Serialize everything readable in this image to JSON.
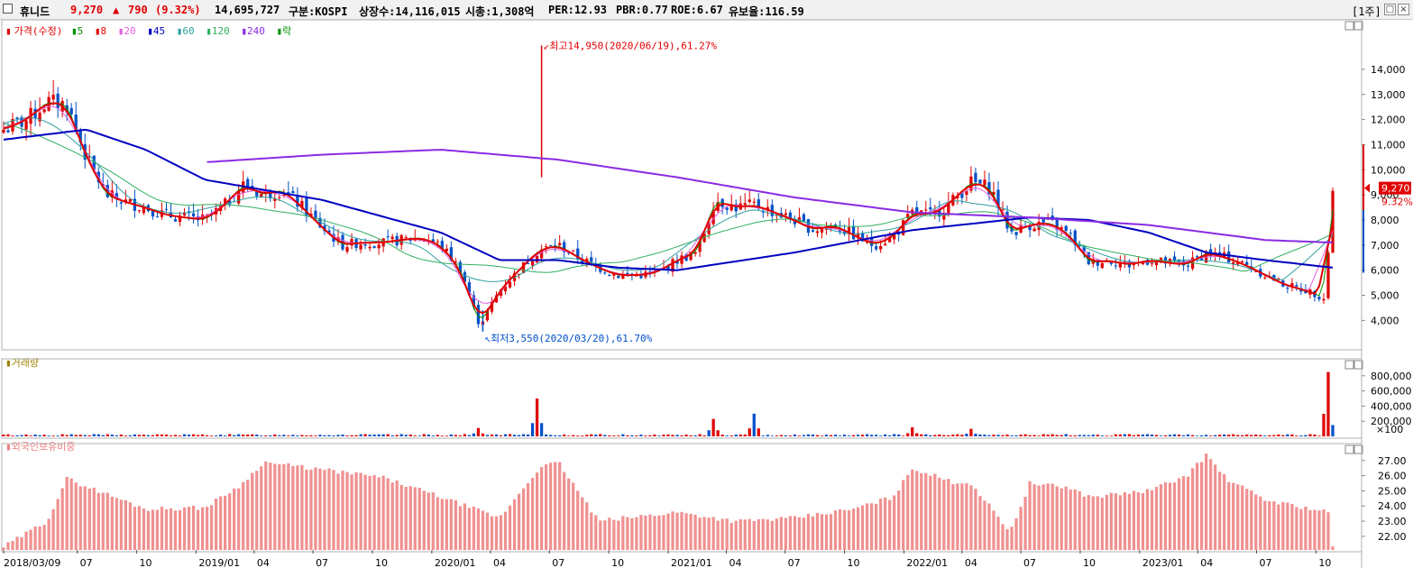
{
  "header": {
    "name": "휴니드",
    "price": "9,270",
    "change_arrow": "▲",
    "change": "790",
    "change_pct": "(9.32%)",
    "volume": "14,695,727",
    "market": "구분:KOSPI",
    "shares": "상장수:14,116,015",
    "mcap": "시총:1,308억",
    "per": "PER:12.93",
    "pbr": "PBR:0.77",
    "roe": "ROE:6.67",
    "reserve": "유보율:116.59",
    "period": "[1주]",
    "colors": {
      "up": "#e00000",
      "down": "#0050c8"
    }
  },
  "legend": {
    "price_title": "가격(수정)",
    "ma": [
      {
        "label": "5",
        "color": "#009000"
      },
      {
        "label": "8",
        "color": "#e00000"
      },
      {
        "label": "20",
        "color": "#e060e0"
      },
      {
        "label": "45",
        "color": "#0000c0"
      },
      {
        "label": "60",
        "color": "#30a0a0"
      },
      {
        "label": "120",
        "color": "#30b060"
      },
      {
        "label": "240",
        "color": "#8a2be2"
      }
    ],
    "extra": "락",
    "volume_title": "거래량",
    "foreign_title": "외국인보유비중"
  },
  "chart_data": [
    {
      "type": "candlestick",
      "title": "가격(수정)",
      "ylim": [
        2900,
        15900
      ],
      "yticks": [
        4000,
        5000,
        6000,
        7000,
        8000,
        9000,
        10000,
        11000,
        12000,
        13000,
        14000
      ],
      "ytick_labels": [
        "4,000",
        "5,000",
        "6,000",
        "7,000",
        "8,000",
        "9,000",
        "10,000",
        "11,000",
        "12,000",
        "13,000",
        "14,000"
      ],
      "current_price_label": "9,270",
      "current_change_label": "9.32%",
      "annotations": [
        {
          "text": "최고14,950(2020/06/19),61.27%",
          "x": "2020/06/19",
          "y": 14950
        },
        {
          "text": "최저3,550(2020/03/20),61.70%",
          "x": "2020/03/20",
          "y": 3550
        }
      ],
      "close_keyframes": [
        [
          "2018/03/09",
          11600
        ],
        [
          "2018/04",
          12000
        ],
        [
          "2018/05",
          12700
        ],
        [
          "2018/06",
          12600
        ],
        [
          "2018/07",
          10500
        ],
        [
          "2018/08",
          9000
        ],
        [
          "2018/09",
          8700
        ],
        [
          "2018/10",
          8500
        ],
        [
          "2018/11",
          8200
        ],
        [
          "2018/12",
          8100
        ],
        [
          "2019/01",
          8000
        ],
        [
          "2019/02",
          8600
        ],
        [
          "2019/03",
          9400
        ],
        [
          "2019/04",
          9000
        ],
        [
          "2019/05",
          9200
        ],
        [
          "2019/06",
          8500
        ],
        [
          "2019/07",
          7700
        ],
        [
          "2019/08",
          7000
        ],
        [
          "2019/09",
          7100
        ],
        [
          "2019/10",
          7100
        ],
        [
          "2019/11",
          7200
        ],
        [
          "2019/12",
          7300
        ],
        [
          "2020/01",
          7000
        ],
        [
          "2020/02",
          6000
        ],
        [
          "2020/03",
          3800
        ],
        [
          "2020/04",
          5200
        ],
        [
          "2020/05",
          6000
        ],
        [
          "2020/06",
          6800
        ],
        [
          "2020/07",
          7000
        ],
        [
          "2020/08",
          6500
        ],
        [
          "2020/09",
          6100
        ],
        [
          "2020/10",
          5800
        ],
        [
          "2020/11",
          5800
        ],
        [
          "2020/12",
          5900
        ],
        [
          "2021/01",
          6400
        ],
        [
          "2021/02",
          6700
        ],
        [
          "2021/03",
          8800
        ],
        [
          "2021/04",
          8500
        ],
        [
          "2021/05",
          8600
        ],
        [
          "2021/06",
          8300
        ],
        [
          "2021/07",
          8000
        ],
        [
          "2021/08",
          7600
        ],
        [
          "2021/09",
          7800
        ],
        [
          "2021/10",
          7400
        ],
        [
          "2021/11",
          7000
        ],
        [
          "2021/12",
          7300
        ],
        [
          "2022/01",
          8300
        ],
        [
          "2022/02",
          8200
        ],
        [
          "2022/03",
          8700
        ],
        [
          "2022/04",
          9500
        ],
        [
          "2022/05",
          9300
        ],
        [
          "2022/06",
          7500
        ],
        [
          "2022/07",
          7800
        ],
        [
          "2022/08",
          7900
        ],
        [
          "2022/09",
          7400
        ],
        [
          "2022/10",
          6300
        ],
        [
          "2022/11",
          6400
        ],
        [
          "2022/12",
          6200
        ],
        [
          "2023/01",
          6400
        ],
        [
          "2023/02",
          6300
        ],
        [
          "2023/03",
          6200
        ],
        [
          "2023/04",
          6700
        ],
        [
          "2023/05",
          6500
        ],
        [
          "2023/06",
          6200
        ],
        [
          "2023/07",
          5800
        ],
        [
          "2023/08",
          5400
        ],
        [
          "2023/09",
          5200
        ],
        [
          "2023/10",
          4900
        ],
        [
          "2023/10/27",
          9270
        ]
      ],
      "ma_240_keyframes": [
        [
          "2019/01",
          10300
        ],
        [
          "2019/07",
          10600
        ],
        [
          "2020/01",
          10800
        ],
        [
          "2020/07",
          10400
        ],
        [
          "2021/01",
          9700
        ],
        [
          "2021/07",
          8900
        ],
        [
          "2022/01",
          8300
        ],
        [
          "2022/07",
          8100
        ],
        [
          "2023/01",
          7800
        ],
        [
          "2023/07",
          7200
        ],
        [
          "2023/10/27",
          7100
        ]
      ],
      "ma_45_keyframes": [
        [
          "2018/03/09",
          11200
        ],
        [
          "2018/07",
          11600
        ],
        [
          "2018/10",
          10800
        ],
        [
          "2019/01",
          9600
        ],
        [
          "2019/07",
          8800
        ],
        [
          "2020/01",
          7500
        ],
        [
          "2020/04",
          6400
        ],
        [
          "2020/07",
          6400
        ],
        [
          "2020/10",
          6100
        ],
        [
          "2021/01",
          6000
        ],
        [
          "2021/07",
          6700
        ],
        [
          "2022/01",
          7600
        ],
        [
          "2022/07",
          8100
        ],
        [
          "2022/10",
          8000
        ],
        [
          "2023/01",
          7500
        ],
        [
          "2023/04",
          6700
        ],
        [
          "2023/07",
          6400
        ],
        [
          "2023/10/27",
          6100
        ]
      ]
    },
    {
      "type": "bar",
      "title": "거래량",
      "ylim": [
        0,
        1000000
      ],
      "yticks": [
        200000,
        400000,
        600000,
        800000
      ],
      "ytick_labels": [
        "200,000",
        "400,000",
        "600,000",
        "800,000"
      ],
      "unit_label": "×100",
      "spikes": [
        [
          "2020/03",
          110000
        ],
        [
          "2020/06",
          500000
        ],
        [
          "2021/03",
          230000
        ],
        [
          "2021/05",
          300000
        ],
        [
          "2022/01",
          120000
        ],
        [
          "2022/04",
          100000
        ],
        [
          "2023/10/20",
          850000
        ],
        [
          "2023/10/27",
          150000
        ]
      ]
    },
    {
      "type": "bar",
      "title": "외국인보유비중",
      "ylim": [
        21.1,
        28.0
      ],
      "yticks": [
        22,
        23,
        24,
        25,
        26,
        27
      ],
      "ytick_labels": [
        "22.00",
        "23.00",
        "24.00",
        "25.00",
        "26.00",
        "27.00"
      ],
      "keyframes": [
        [
          "2018/03/09",
          21.3
        ],
        [
          "2018/05",
          23.0
        ],
        [
          "2018/06",
          25.8
        ],
        [
          "2018/07",
          25.3
        ],
        [
          "2018/10",
          23.8
        ],
        [
          "2019/01",
          23.9
        ],
        [
          "2019/03",
          25.5
        ],
        [
          "2019/04",
          26.9
        ],
        [
          "2019/07",
          26.4
        ],
        [
          "2019/10",
          25.9
        ],
        [
          "2020/01",
          24.6
        ],
        [
          "2020/04",
          23.2
        ],
        [
          "2020/06",
          26.5
        ],
        [
          "2020/07",
          26.9
        ],
        [
          "2020/09",
          23.0
        ],
        [
          "2021/01",
          23.6
        ],
        [
          "2021/04",
          23.0
        ],
        [
          "2021/07",
          23.2
        ],
        [
          "2021/10",
          23.8
        ],
        [
          "2021/12",
          24.6
        ],
        [
          "2022/01",
          26.5
        ],
        [
          "2022/03",
          25.6
        ],
        [
          "2022/04",
          25.5
        ],
        [
          "2022/06",
          22.3
        ],
        [
          "2022/07",
          25.5
        ],
        [
          "2022/09",
          25.2
        ],
        [
          "2022/10",
          24.6
        ],
        [
          "2023/01",
          25.0
        ],
        [
          "2023/03",
          26.0
        ],
        [
          "2023/04",
          27.4
        ],
        [
          "2023/05",
          25.8
        ],
        [
          "2023/07",
          24.4
        ],
        [
          "2023/10/20",
          23.6
        ],
        [
          "2023/10/27",
          21.4
        ]
      ]
    }
  ],
  "xaxis": {
    "start": "2018/03/09",
    "end": "2023/10/27",
    "ticks": [
      {
        "label": "2018/03/09",
        "date": "2018/03/09"
      },
      {
        "label": "07",
        "date": "2018/07"
      },
      {
        "label": "10",
        "date": "2018/10"
      },
      {
        "label": "2019/01",
        "date": "2019/01"
      },
      {
        "label": "04",
        "date": "2019/04"
      },
      {
        "label": "07",
        "date": "2019/07"
      },
      {
        "label": "10",
        "date": "2019/10"
      },
      {
        "label": "2020/01",
        "date": "2020/01"
      },
      {
        "label": "04",
        "date": "2020/04"
      },
      {
        "label": "07",
        "date": "2020/07"
      },
      {
        "label": "10",
        "date": "2020/10"
      },
      {
        "label": "2021/01",
        "date": "2021/01"
      },
      {
        "label": "04",
        "date": "2021/04"
      },
      {
        "label": "07",
        "date": "2021/07"
      },
      {
        "label": "10",
        "date": "2021/10"
      },
      {
        "label": "2022/01",
        "date": "2022/01"
      },
      {
        "label": "04",
        "date": "2022/04"
      },
      {
        "label": "07",
        "date": "2022/07"
      },
      {
        "label": "10",
        "date": "2022/10"
      },
      {
        "label": "2023/01",
        "date": "2023/01"
      },
      {
        "label": "04",
        "date": "2023/04"
      },
      {
        "label": "07",
        "date": "2023/07"
      },
      {
        "label": "10",
        "date": "2023/10"
      }
    ]
  }
}
